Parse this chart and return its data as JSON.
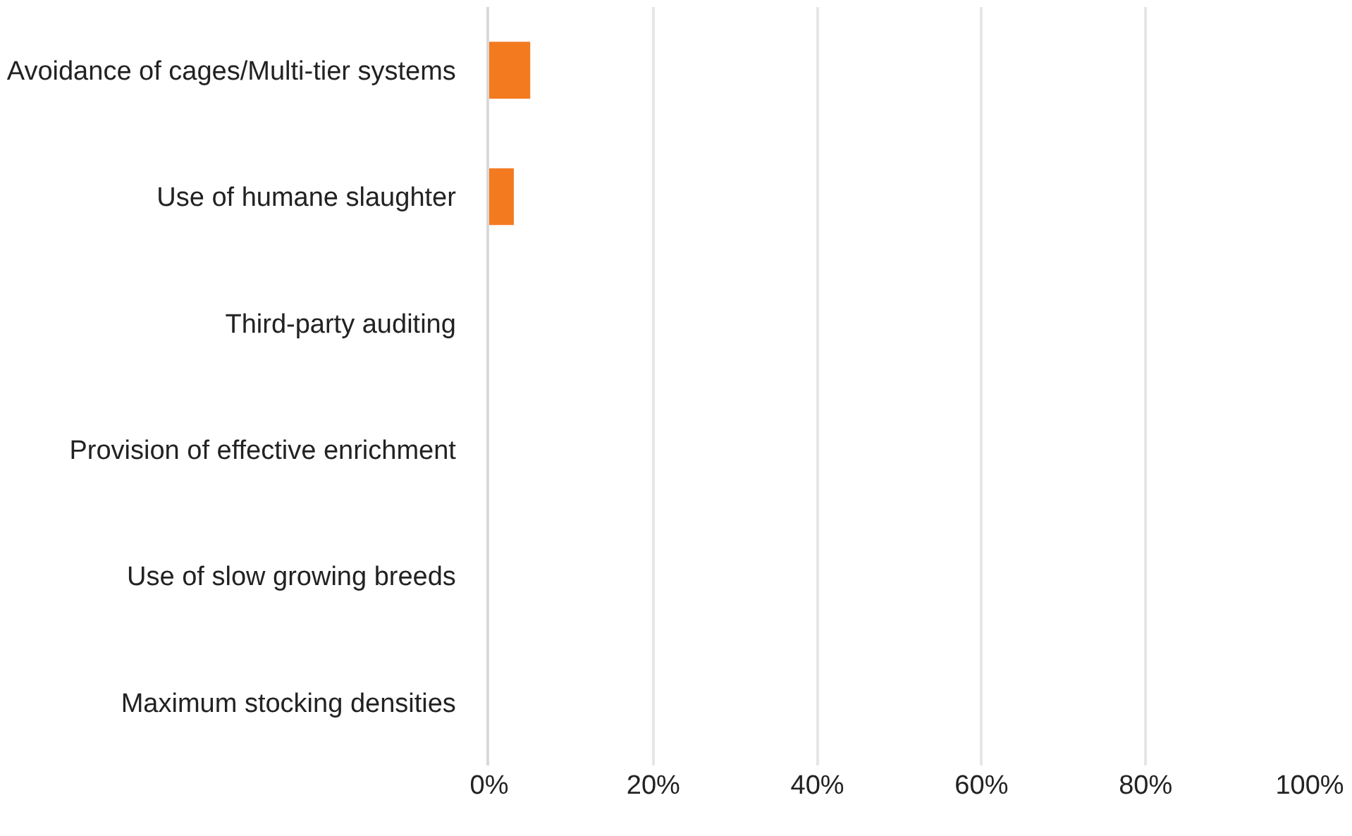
{
  "chart_data": {
    "type": "bar",
    "orientation": "horizontal",
    "categories": [
      "Avoidance of cages/Multi-tier systems",
      "Use of humane slaughter",
      "Third-party auditing",
      "Provision of effective enrichment",
      "Use of slow growing breeds",
      "Maximum stocking densities"
    ],
    "values": [
      5,
      3,
      0,
      0,
      0,
      0
    ],
    "color": "#f47a20",
    "xlim": [
      0,
      100
    ],
    "xticks": [
      {
        "value": 0,
        "label": "0%"
      },
      {
        "value": 20,
        "label": "20%"
      },
      {
        "value": 40,
        "label": "40%"
      },
      {
        "value": 60,
        "label": "60%"
      },
      {
        "value": 80,
        "label": "80%"
      },
      {
        "value": 100,
        "label": "100%"
      }
    ],
    "grid": "x"
  }
}
